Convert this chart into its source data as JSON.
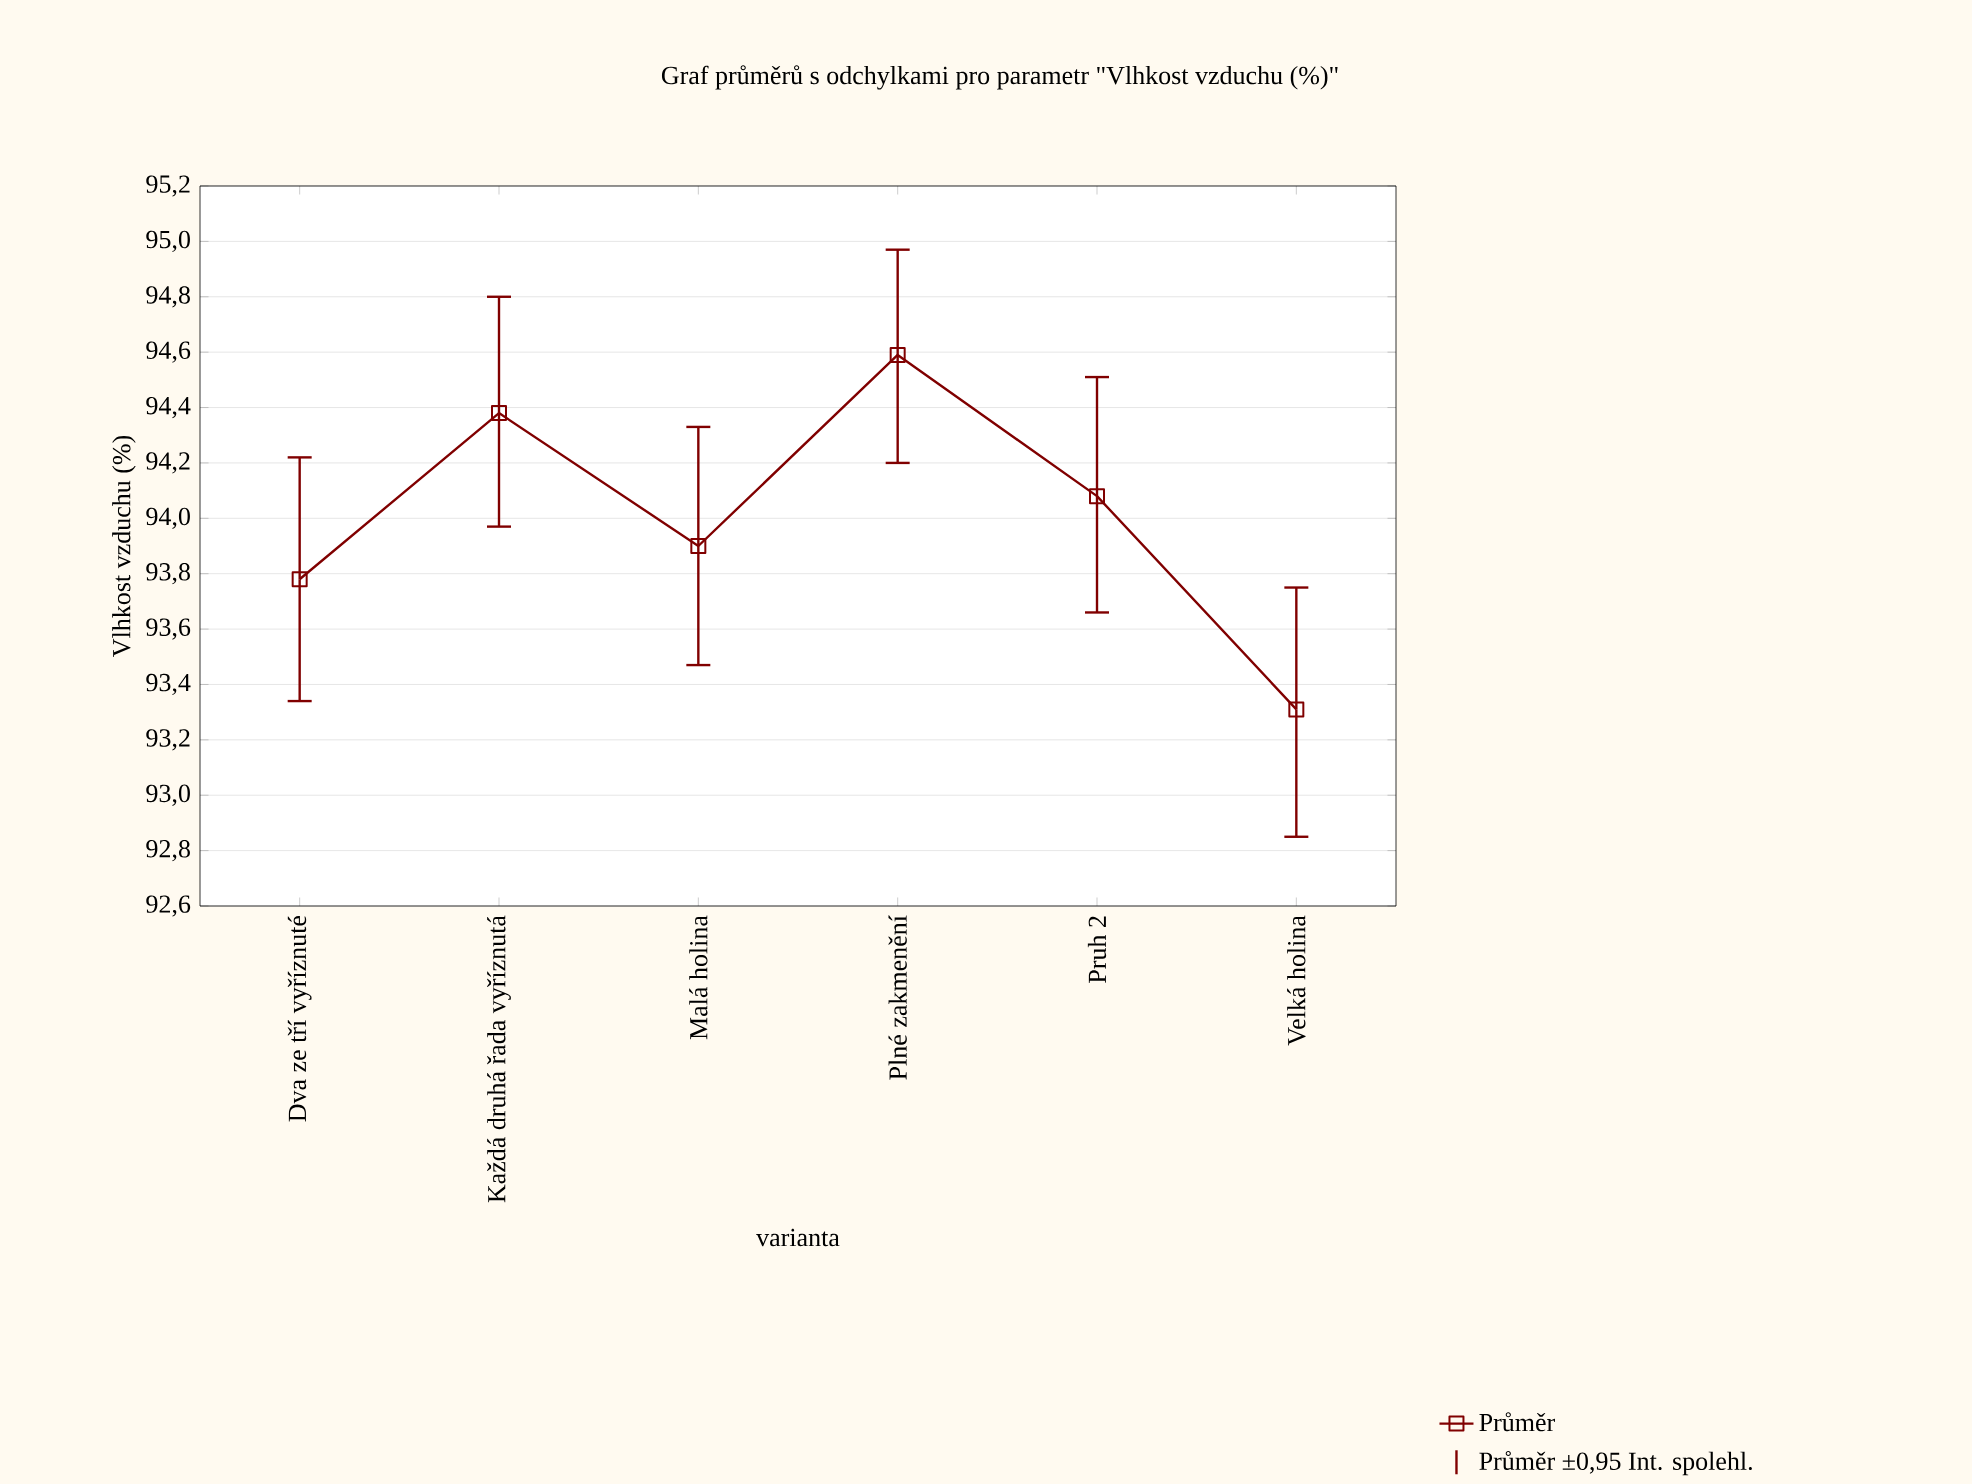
{
  "chart_data": {
    "type": "line",
    "title": "Graf průměrů s odchylkami pro parametr \"Vlhkost vzduchu (%)\"",
    "xlabel": "varianta",
    "ylabel": "Vlhkost vzduchu (%)",
    "categories": [
      "Dva ze tří vyříznuté",
      "Každá druhá řada vyříznutá",
      "Malá holina",
      "Plné zakmenění",
      "Pruh 2",
      "Velká holina"
    ],
    "series": [
      {
        "name": "Průměr",
        "color": "#800000",
        "values": [
          93.78,
          94.38,
          93.9,
          94.59,
          94.08,
          93.31
        ],
        "errors": [
          [
            93.34,
            94.22
          ],
          [
            93.97,
            94.8
          ],
          [
            93.47,
            94.33
          ],
          [
            94.2,
            94.97
          ],
          [
            93.66,
            94.51
          ],
          [
            92.85,
            93.75
          ]
        ]
      }
    ],
    "annotations": [
      "Průměr ±0,95 Int. spolehl."
    ],
    "ylim": [
      92.6,
      95.2
    ],
    "yticks": [
      {
        "value": 92.6,
        "label": "92,6"
      },
      {
        "value": 92.8,
        "label": "92,8"
      },
      {
        "value": 93.0,
        "label": "93,0"
      },
      {
        "value": 93.2,
        "label": "93,2"
      },
      {
        "value": 93.4,
        "label": "93,4"
      },
      {
        "value": 93.6,
        "label": "93,6"
      },
      {
        "value": 93.8,
        "label": "93,8"
      },
      {
        "value": 94.0,
        "label": "94,0"
      },
      {
        "value": 94.2,
        "label": "94,2"
      },
      {
        "value": 94.4,
        "label": "94,4"
      },
      {
        "value": 94.6,
        "label": "94,6"
      },
      {
        "value": 94.8,
        "label": "94,8"
      },
      {
        "value": 95.0,
        "label": "95,0"
      },
      {
        "value": 95.2,
        "label": "95,2"
      }
    ],
    "grid": "y",
    "legend": "bottom right",
    "marker": "square",
    "line_style": "solid"
  }
}
